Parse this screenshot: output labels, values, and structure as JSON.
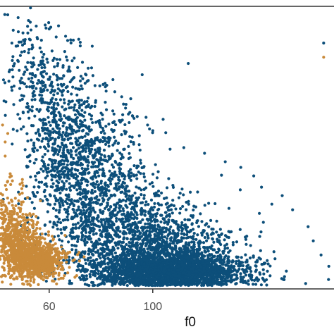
{
  "chart_data": {
    "type": "scatter",
    "title": "",
    "xlabel": "f0",
    "ylabel": "",
    "xlim": [
      41,
      170
    ],
    "ylim": [
      0,
      100
    ],
    "x_ticks": [
      60,
      100
    ],
    "x_tick_labels": [
      "60",
      "100"
    ],
    "grid": false,
    "legend": "none",
    "series": [
      {
        "color": "#0d4f7a",
        "clusters": [
          {
            "cx": 107,
            "cy": 6,
            "sx": 15,
            "sy": 3.2,
            "n": 2200
          },
          {
            "cx": 105,
            "cy": 13,
            "sx": 13,
            "sy": 6,
            "n": 900
          },
          {
            "cx": 90,
            "cy": 22,
            "sx": 14,
            "sy": 9,
            "n": 650
          },
          {
            "cx": 76,
            "cy": 37,
            "sx": 11,
            "sy": 14,
            "n": 900
          },
          {
            "cx": 64,
            "cy": 58,
            "sx": 8,
            "sy": 14,
            "n": 500
          },
          {
            "cx": 55,
            "cy": 78,
            "sx": 6,
            "sy": 9,
            "n": 130
          }
        ],
        "points": [
          [
            44,
            97
          ],
          [
            48,
            96
          ],
          [
            52,
            95
          ],
          [
            55,
            93
          ],
          [
            60,
            92
          ],
          [
            57,
            88
          ],
          [
            66,
            84
          ],
          [
            72,
            86
          ],
          [
            74,
            76
          ],
          [
            46,
            75
          ],
          [
            82,
            70
          ],
          [
            88,
            68
          ],
          [
            94,
            61
          ],
          [
            98,
            58
          ],
          [
            104,
            60
          ],
          [
            112,
            50
          ],
          [
            120,
            48
          ],
          [
            128,
            45
          ],
          [
            134,
            43
          ],
          [
            139,
            40
          ],
          [
            142,
            36
          ],
          [
            146,
            30
          ],
          [
            150,
            33
          ],
          [
            154,
            28
          ],
          [
            160,
            22
          ],
          [
            162,
            17
          ],
          [
            165,
            12
          ],
          [
            168,
            8
          ],
          [
            166,
            87
          ]
        ]
      },
      {
        "color": "#c98a3a",
        "clusters": [
          {
            "cx": 56,
            "cy": 10,
            "sx": 5,
            "sy": 3.2,
            "n": 750
          },
          {
            "cx": 49,
            "cy": 15,
            "sx": 4,
            "sy": 6,
            "n": 550
          },
          {
            "cx": 44,
            "cy": 22,
            "sx": 3,
            "sy": 8,
            "n": 200
          }
        ],
        "points": [
          [
            43,
            47
          ],
          [
            43,
            52
          ],
          [
            42,
            58
          ],
          [
            44,
            55
          ],
          [
            166,
            82
          ]
        ]
      }
    ]
  }
}
